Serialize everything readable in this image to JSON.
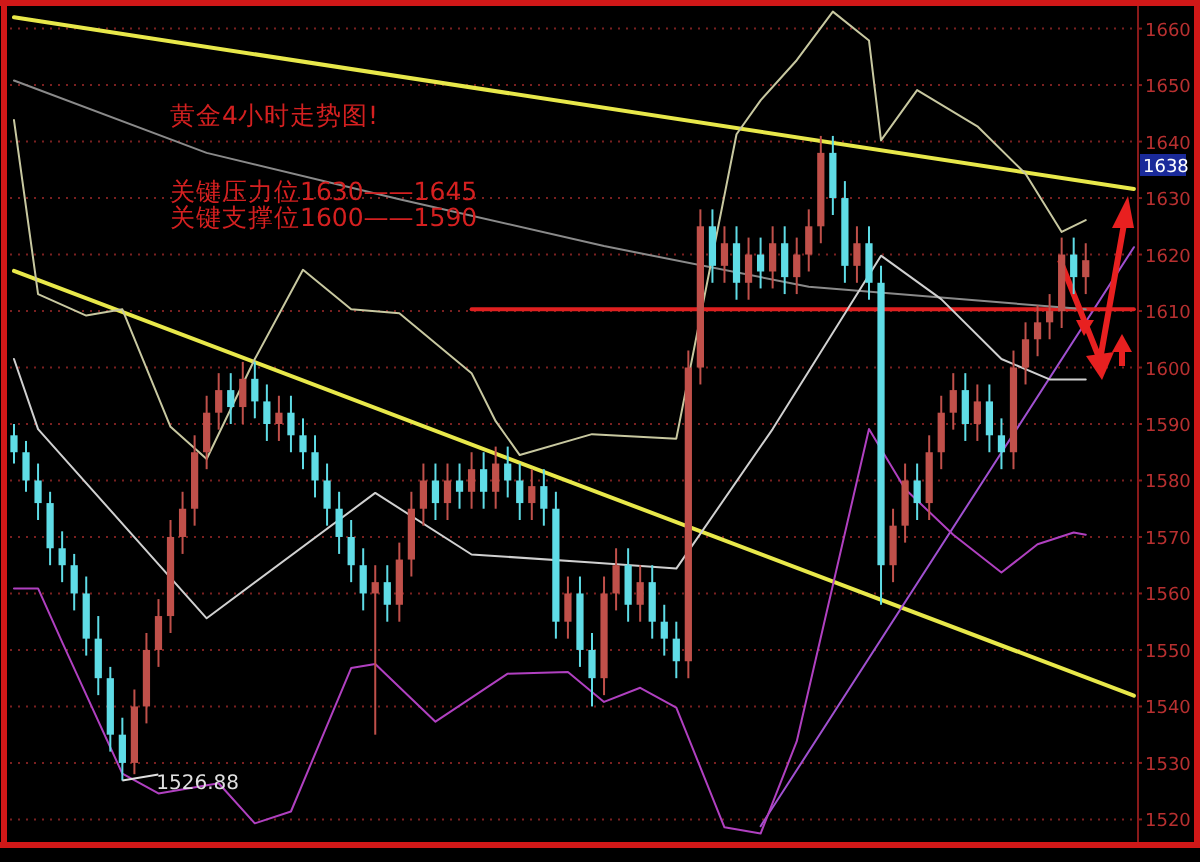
{
  "chart_data": {
    "type": "candlestick",
    "categories": [
      null,
      null,
      null,
      null,
      null,
      null,
      null,
      null,
      null,
      null,
      null,
      null,
      null,
      null,
      null,
      null,
      null,
      null,
      null,
      null,
      null,
      null,
      null,
      null,
      null,
      null,
      null,
      null,
      null,
      null,
      null,
      null,
      null,
      null,
      null,
      null,
      null,
      null,
      null,
      null,
      null,
      null,
      null,
      null,
      null,
      null,
      null,
      null,
      null,
      null,
      null,
      null,
      null,
      null,
      null,
      null,
      null,
      null,
      null,
      null,
      null,
      null,
      null,
      null,
      null,
      null,
      null,
      null,
      null,
      null,
      null,
      null,
      null,
      null,
      null,
      null,
      null,
      null,
      null,
      null,
      null,
      null,
      null,
      null,
      null,
      null,
      null,
      null,
      null,
      null,
      null,
      null,
      null,
      null
    ],
    "ohlc": [
      [
        1588,
        1590,
        1583,
        1585
      ],
      [
        1585,
        1587,
        1578,
        1580
      ],
      [
        1580,
        1583,
        1573,
        1576
      ],
      [
        1576,
        1578,
        1565,
        1568
      ],
      [
        1568,
        1571,
        1562,
        1565
      ],
      [
        1565,
        1567,
        1557,
        1560
      ],
      [
        1560,
        1563,
        1549,
        1552
      ],
      [
        1552,
        1556,
        1542,
        1545
      ],
      [
        1545,
        1547,
        1532,
        1535
      ],
      [
        1535,
        1538,
        1526.88,
        1530
      ],
      [
        1530,
        1543,
        1528,
        1540
      ],
      [
        1540,
        1553,
        1537,
        1550
      ],
      [
        1550,
        1559,
        1547,
        1556
      ],
      [
        1556,
        1573,
        1553,
        1570
      ],
      [
        1570,
        1578,
        1567,
        1575
      ],
      [
        1575,
        1588,
        1572,
        1585
      ],
      [
        1585,
        1595,
        1582,
        1592
      ],
      [
        1592,
        1599,
        1589,
        1596
      ],
      [
        1596,
        1599,
        1590,
        1593
      ],
      [
        1593,
        1601,
        1590,
        1598
      ],
      [
        1598,
        1601,
        1591,
        1594
      ],
      [
        1594,
        1597,
        1587,
        1590
      ],
      [
        1590,
        1595,
        1587,
        1592
      ],
      [
        1592,
        1595,
        1585,
        1588
      ],
      [
        1588,
        1591,
        1582,
        1585
      ],
      [
        1585,
        1588,
        1577,
        1580
      ],
      [
        1580,
        1583,
        1572,
        1575
      ],
      [
        1575,
        1578,
        1567,
        1570
      ],
      [
        1570,
        1573,
        1562,
        1565
      ],
      [
        1565,
        1568,
        1557,
        1560
      ],
      [
        1560,
        1565,
        1535,
        1562
      ],
      [
        1562,
        1565,
        1555,
        1558
      ],
      [
        1558,
        1569,
        1555,
        1566
      ],
      [
        1566,
        1578,
        1563,
        1575
      ],
      [
        1575,
        1583,
        1572,
        1580
      ],
      [
        1580,
        1583,
        1573,
        1576
      ],
      [
        1576,
        1583,
        1573,
        1580
      ],
      [
        1580,
        1583,
        1575,
        1578
      ],
      [
        1578,
        1585,
        1575,
        1582
      ],
      [
        1582,
        1585,
        1575,
        1578
      ],
      [
        1578,
        1586,
        1575,
        1583
      ],
      [
        1583,
        1586,
        1577,
        1580
      ],
      [
        1580,
        1583,
        1573,
        1576
      ],
      [
        1576,
        1582,
        1573,
        1579
      ],
      [
        1579,
        1582,
        1572,
        1575
      ],
      [
        1575,
        1578,
        1552,
        1555
      ],
      [
        1555,
        1563,
        1552,
        1560
      ],
      [
        1560,
        1563,
        1547,
        1550
      ],
      [
        1550,
        1553,
        1540,
        1545
      ],
      [
        1545,
        1563,
        1542,
        1560
      ],
      [
        1560,
        1568,
        1557,
        1565
      ],
      [
        1565,
        1568,
        1555,
        1558
      ],
      [
        1558,
        1565,
        1555,
        1562
      ],
      [
        1562,
        1565,
        1552,
        1555
      ],
      [
        1555,
        1558,
        1549,
        1552
      ],
      [
        1552,
        1555,
        1545,
        1548
      ],
      [
        1548,
        1603,
        1545,
        1600
      ],
      [
        1600,
        1628,
        1597,
        1625
      ],
      [
        1625,
        1628,
        1615,
        1618
      ],
      [
        1618,
        1625,
        1615,
        1622
      ],
      [
        1622,
        1625,
        1612,
        1615
      ],
      [
        1615,
        1623,
        1612,
        1620
      ],
      [
        1620,
        1623,
        1614,
        1617
      ],
      [
        1617,
        1625,
        1614,
        1622
      ],
      [
        1622,
        1625,
        1613,
        1616
      ],
      [
        1616,
        1623,
        1613,
        1620
      ],
      [
        1620,
        1628,
        1617,
        1625
      ],
      [
        1625,
        1641,
        1622,
        1638
      ],
      [
        1638,
        1641,
        1627,
        1630
      ],
      [
        1630,
        1633,
        1615,
        1618
      ],
      [
        1618,
        1625,
        1615,
        1622
      ],
      [
        1622,
        1625,
        1612,
        1615
      ],
      [
        1615,
        1618,
        1558,
        1565
      ],
      [
        1565,
        1575,
        1562,
        1572
      ],
      [
        1572,
        1583,
        1569,
        1580
      ],
      [
        1580,
        1583,
        1573,
        1576
      ],
      [
        1576,
        1588,
        1573,
        1585
      ],
      [
        1585,
        1595,
        1582,
        1592
      ],
      [
        1592,
        1599,
        1589,
        1596
      ],
      [
        1596,
        1599,
        1587,
        1590
      ],
      [
        1590,
        1597,
        1587,
        1594
      ],
      [
        1594,
        1597,
        1585,
        1588
      ],
      [
        1588,
        1591,
        1582,
        1585
      ],
      [
        1585,
        1603,
        1582,
        1600
      ],
      [
        1600,
        1608,
        1597,
        1605
      ],
      [
        1605,
        1611,
        1602,
        1608
      ],
      [
        1608,
        1613,
        1605,
        1610
      ],
      [
        1610,
        1623,
        1607,
        1620
      ],
      [
        1620,
        1623,
        1613,
        1616
      ],
      [
        1616,
        1622,
        1613,
        1619
      ],
      null,
      null,
      null,
      null
    ],
    "series": [
      {
        "type": "line",
        "color": "#e8e84a",
        "values": [
          1662.0,
          null,
          null,
          null,
          null,
          null,
          null,
          null,
          null,
          null,
          null,
          null,
          null,
          null,
          null,
          null,
          null,
          null,
          null,
          null,
          null,
          null,
          null,
          null,
          null,
          null,
          null,
          null,
          null,
          null,
          null,
          null,
          null,
          null,
          null,
          null,
          null,
          null,
          null,
          null,
          null,
          null,
          null,
          null,
          null,
          null,
          null,
          null,
          null,
          null,
          null,
          null,
          null,
          null,
          null,
          null,
          null,
          null,
          null,
          null,
          null,
          null,
          null,
          null,
          null,
          null,
          null,
          null,
          null,
          null,
          null,
          null,
          null,
          null,
          null,
          null,
          null,
          null,
          null,
          null,
          null,
          null,
          null,
          null,
          null,
          null,
          null,
          null,
          null,
          null,
          null,
          null,
          null,
          1631.6
        ]
      },
      {
        "type": "line",
        "color": "#e8e84a",
        "values": [
          1617.1,
          null,
          null,
          null,
          null,
          null,
          null,
          null,
          null,
          null,
          null,
          null,
          null,
          null,
          null,
          null,
          null,
          null,
          null,
          null,
          null,
          null,
          null,
          null,
          null,
          null,
          null,
          null,
          null,
          null,
          null,
          null,
          null,
          null,
          null,
          null,
          null,
          null,
          null,
          null,
          null,
          null,
          null,
          null,
          null,
          null,
          null,
          null,
          null,
          null,
          null,
          null,
          null,
          null,
          null,
          null,
          null,
          null,
          null,
          null,
          null,
          null,
          null,
          null,
          null,
          null,
          null,
          null,
          null,
          null,
          null,
          null,
          null,
          null,
          null,
          null,
          null,
          null,
          null,
          null,
          null,
          null,
          null,
          null,
          null,
          null,
          null,
          null,
          null,
          null,
          null,
          null,
          null,
          1541.9
        ]
      },
      {
        "type": "line",
        "color": "#a050d0",
        "values": [
          null,
          null,
          null,
          null,
          null,
          null,
          null,
          null,
          null,
          null,
          null,
          null,
          null,
          null,
          null,
          null,
          null,
          null,
          null,
          null,
          null,
          null,
          null,
          null,
          null,
          null,
          null,
          null,
          null,
          null,
          null,
          null,
          null,
          null,
          null,
          null,
          null,
          null,
          null,
          null,
          null,
          null,
          null,
          null,
          null,
          null,
          null,
          null,
          null,
          null,
          null,
          null,
          null,
          null,
          null,
          null,
          null,
          null,
          null,
          null,
          null,
          null,
          1518.8,
          null,
          null,
          null,
          null,
          null,
          null,
          null,
          null,
          null,
          null,
          null,
          null,
          null,
          null,
          null,
          null,
          null,
          null,
          null,
          null,
          null,
          null,
          null,
          null,
          null,
          null,
          null,
          null,
          null,
          null,
          1621.3
        ]
      },
      {
        "type": "line",
        "color": "#e02020",
        "values": [
          null,
          null,
          null,
          null,
          null,
          null,
          null,
          null,
          null,
          null,
          null,
          null,
          null,
          null,
          null,
          null,
          null,
          null,
          null,
          null,
          null,
          null,
          null,
          null,
          null,
          null,
          null,
          null,
          null,
          null,
          null,
          null,
          null,
          null,
          null,
          null,
          null,
          null,
          1610.3,
          null,
          null,
          null,
          null,
          null,
          null,
          null,
          null,
          null,
          null,
          null,
          null,
          null,
          null,
          null,
          null,
          null,
          null,
          null,
          null,
          null,
          null,
          null,
          null,
          null,
          null,
          null,
          null,
          null,
          null,
          null,
          null,
          null,
          null,
          null,
          null,
          null,
          null,
          null,
          null,
          null,
          null,
          null,
          null,
          null,
          null,
          null,
          null,
          null,
          null,
          null,
          null,
          null,
          null,
          1610.3
        ]
      },
      {
        "type": "line",
        "color": "#8a8a8a",
        "values": [
          1650.8,
          null,
          null,
          null,
          null,
          null,
          null,
          null,
          null,
          null,
          null,
          null,
          null,
          null,
          null,
          null,
          1638,
          null,
          null,
          null,
          null,
          null,
          null,
          null,
          null,
          null,
          null,
          null,
          null,
          null,
          null,
          null,
          1629.8,
          null,
          null,
          null,
          null,
          null,
          null,
          null,
          null,
          null,
          null,
          null,
          null,
          null,
          null,
          null,
          null,
          1621.5,
          null,
          null,
          null,
          null,
          null,
          null,
          null,
          null,
          null,
          null,
          null,
          null,
          null,
          null,
          null,
          null,
          1614.3,
          null,
          null,
          null,
          null,
          null,
          null,
          null,
          null,
          null,
          null,
          null,
          null,
          null,
          null,
          null,
          null,
          null,
          null,
          null,
          null,
          null,
          null,
          1610.3,
          null,
          null,
          null,
          null
        ]
      },
      {
        "type": "line",
        "color": "#c8c8a0",
        "values": [
          1643.8,
          null,
          1613,
          null,
          null,
          null,
          1609.2,
          null,
          null,
          1610.3,
          null,
          null,
          null,
          1589.5,
          null,
          null,
          1583.8,
          null,
          null,
          null,
          1601.5,
          null,
          null,
          null,
          1617.3,
          null,
          null,
          null,
          1610.3,
          null,
          null,
          null,
          1609.6,
          null,
          null,
          null,
          null,
          null,
          1599.0,
          null,
          1590.5,
          null,
          1584.5,
          null,
          null,
          null,
          null,
          null,
          1588.2,
          null,
          null,
          null,
          null,
          null,
          null,
          1587.4,
          null,
          null,
          null,
          null,
          1641.3,
          null,
          1647.3,
          null,
          null,
          1654.4,
          null,
          null,
          1663,
          null,
          null,
          1657.9,
          1640.2,
          null,
          null,
          1649.1,
          null,
          null,
          null,
          null,
          1642.7,
          null,
          null,
          null,
          1634.3,
          null,
          null,
          1624.0,
          null,
          1626.1,
          null,
          null,
          null,
          null
        ]
      },
      {
        "type": "line",
        "color": "#d0d0d0",
        "values": [
          1601.5,
          null,
          1589.1,
          null,
          null,
          null,
          null,
          null,
          null,
          null,
          null,
          null,
          null,
          null,
          null,
          null,
          1555.6,
          null,
          null,
          null,
          null,
          null,
          null,
          null,
          null,
          null,
          null,
          null,
          null,
          null,
          1577.8,
          null,
          null,
          null,
          null,
          null,
          null,
          null,
          1566.9,
          null,
          null,
          null,
          null,
          null,
          null,
          null,
          null,
          null,
          1565.5,
          null,
          null,
          null,
          null,
          null,
          null,
          1564.4,
          null,
          null,
          null,
          null,
          null,
          null,
          null,
          1589.1,
          null,
          null,
          null,
          null,
          null,
          null,
          null,
          null,
          1619.8,
          null,
          null,
          null,
          null,
          1612.1,
          null,
          null,
          null,
          null,
          1601.5,
          null,
          null,
          null,
          1597.9,
          null,
          null,
          1597.9,
          null,
          null,
          null,
          null
        ]
      },
      {
        "type": "line",
        "color": "#b040c0",
        "values": [
          1560.9,
          null,
          1560.9,
          null,
          1551.4,
          null,
          null,
          null,
          null,
          1528.1,
          null,
          null,
          1524.6,
          null,
          null,
          null,
          null,
          1526.4,
          null,
          null,
          1519.3,
          null,
          null,
          1521.4,
          null,
          null,
          null,
          null,
          1546.8,
          null,
          1547.5,
          null,
          null,
          null,
          null,
          1537.3,
          null,
          null,
          null,
          null,
          null,
          1545.8,
          null,
          null,
          null,
          null,
          1546.1,
          null,
          null,
          1540.8,
          null,
          null,
          1543.3,
          null,
          null,
          1539.8,
          null,
          null,
          null,
          1518.6,
          null,
          null,
          1517.5,
          null,
          null,
          1533.8,
          null,
          null,
          null,
          null,
          null,
          1589.1,
          null,
          null,
          1578.5,
          null,
          null,
          null,
          1570.4,
          null,
          null,
          null,
          1563.7,
          null,
          null,
          1568.7,
          null,
          null,
          1570.8,
          1570.4,
          null,
          null,
          null,
          null
        ]
      }
    ],
    "ylim": [
      1516,
      1664
    ],
    "yticks": [
      1520,
      1530,
      1540,
      1550,
      1560,
      1570,
      1580,
      1590,
      1600,
      1610,
      1620,
      1630,
      1640,
      1650,
      1660
    ],
    "grid": "y",
    "tick_labels": "y",
    "annotations": [
      "黄金4小时走势图!",
      "关键压力位1630——1645",
      "关键支撑位1600——1590",
      {
        "text": "1526.88",
        "y": 1526.88
      },
      "1638"
    ]
  }
}
